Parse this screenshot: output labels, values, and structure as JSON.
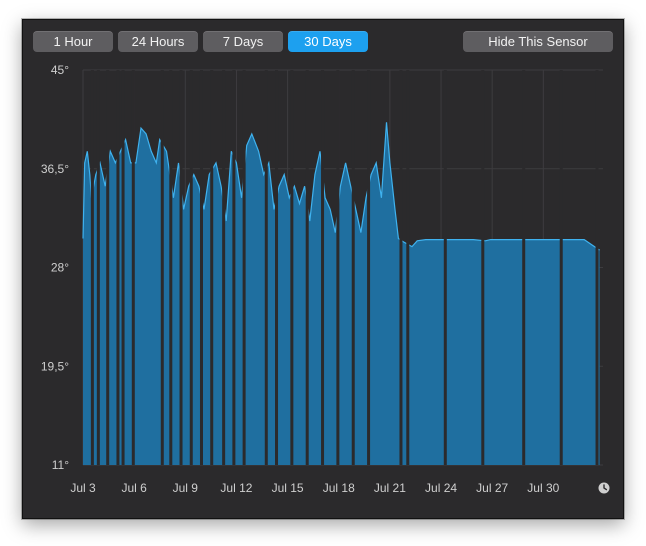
{
  "toolbar": {
    "ranges": [
      "1 Hour",
      "24 Hours",
      "7 Days",
      "30 Days"
    ],
    "selected_range": "30 Days",
    "hide_label": "Hide This Sensor"
  },
  "chart_data": {
    "type": "area",
    "y_tick_labels": [
      "45°",
      "36,5°",
      "28°",
      "19,5°",
      "11°"
    ],
    "x_tick_labels": [
      "Jul 3",
      "Jul 6",
      "Jul 9",
      "Jul 12",
      "Jul 15",
      "Jul 18",
      "Jul 21",
      "Jul 24",
      "Jul 27",
      "Jul 30"
    ],
    "ylim": [
      11,
      45
    ],
    "x_unit": "days since Jul 3",
    "xlim": [
      0,
      30.5
    ],
    "grid": true,
    "colors": {
      "fill": "#1f6fa0",
      "line": "#3fb2ef",
      "grid": "#3d3c3f"
    },
    "points": [
      [
        0.0,
        30.5
      ],
      [
        0.1,
        37
      ],
      [
        0.25,
        38
      ],
      [
        0.4,
        36
      ],
      [
        0.5,
        34
      ],
      [
        0.75,
        36
      ],
      [
        1.0,
        37
      ],
      [
        1.3,
        35
      ],
      [
        1.6,
        38
      ],
      [
        1.9,
        37
      ],
      [
        2.2,
        38
      ],
      [
        2.5,
        39
      ],
      [
        2.8,
        37
      ],
      [
        3.1,
        37
      ],
      [
        3.4,
        40
      ],
      [
        3.7,
        39.5
      ],
      [
        4.0,
        38
      ],
      [
        4.3,
        37
      ],
      [
        4.5,
        39
      ],
      [
        4.9,
        38
      ],
      [
        5.3,
        34
      ],
      [
        5.6,
        37
      ],
      [
        5.9,
        33
      ],
      [
        6.2,
        35
      ],
      [
        6.5,
        36
      ],
      [
        6.8,
        35
      ],
      [
        7.1,
        33
      ],
      [
        7.4,
        36
      ],
      [
        7.8,
        37
      ],
      [
        8.1,
        35
      ],
      [
        8.4,
        32
      ],
      [
        8.7,
        38
      ],
      [
        9.0,
        37
      ],
      [
        9.3,
        34
      ],
      [
        9.6,
        38.5
      ],
      [
        9.9,
        39.5
      ],
      [
        10.3,
        38
      ],
      [
        10.6,
        36
      ],
      [
        10.9,
        37
      ],
      [
        11.2,
        33
      ],
      [
        11.5,
        35
      ],
      [
        11.8,
        36
      ],
      [
        12.1,
        34
      ],
      [
        12.4,
        35
      ],
      [
        12.7,
        33.5
      ],
      [
        13.0,
        35
      ],
      [
        13.3,
        32
      ],
      [
        13.6,
        36
      ],
      [
        13.9,
        38
      ],
      [
        14.2,
        34
      ],
      [
        14.5,
        33
      ],
      [
        14.8,
        31
      ],
      [
        15.1,
        35
      ],
      [
        15.4,
        37
      ],
      [
        15.7,
        35
      ],
      [
        16.0,
        33
      ],
      [
        16.3,
        31
      ],
      [
        16.6,
        34
      ],
      [
        16.9,
        36
      ],
      [
        17.2,
        37
      ],
      [
        17.5,
        34
      ],
      [
        17.8,
        40.5
      ],
      [
        18.0,
        37
      ],
      [
        18.3,
        33
      ],
      [
        18.5,
        30.5
      ],
      [
        18.8,
        30.2
      ],
      [
        19.3,
        29.8
      ],
      [
        19.6,
        30.3
      ],
      [
        20.1,
        30.4
      ],
      [
        20.8,
        30.4
      ],
      [
        21.5,
        30.4
      ],
      [
        22.2,
        30.4
      ],
      [
        22.9,
        30.4
      ],
      [
        23.6,
        30.3
      ],
      [
        23.9,
        30.4
      ],
      [
        24.6,
        30.4
      ],
      [
        25.4,
        30.4
      ],
      [
        26.2,
        30.4
      ],
      [
        27.1,
        30.4
      ],
      [
        27.8,
        30.4
      ],
      [
        28.6,
        30.4
      ],
      [
        29.4,
        30.4
      ],
      [
        30.3,
        29.5
      ]
    ],
    "gaps_days": [
      0.55,
      0.9,
      1.45,
      2.05,
      2.35,
      2.95,
      4.65,
      5.15,
      5.75,
      6.35,
      6.95,
      7.55,
      8.25,
      8.85,
      9.45,
      10.75,
      11.35,
      12.25,
      13.15,
      14.05,
      14.95,
      15.85,
      16.75,
      18.65,
      19.05,
      21.25,
      23.45,
      25.85,
      28.05,
      30.15
    ]
  }
}
